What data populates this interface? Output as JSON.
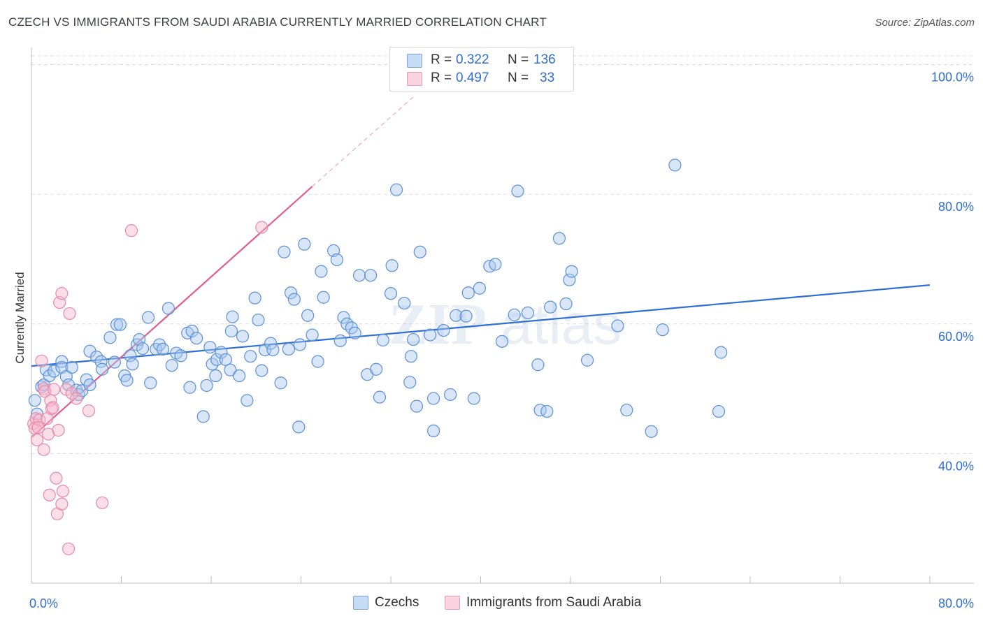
{
  "header": {
    "title": "CZECH VS IMMIGRANTS FROM SAUDI ARABIA CURRENTLY MARRIED CORRELATION CHART",
    "source": "Source: ZipAtlas.com"
  },
  "legend": {
    "rows": [
      {
        "r_label": "R =",
        "r_value": "0.322",
        "n_label": "N =",
        "n_value": "136",
        "color": "#a9c8f0"
      },
      {
        "r_label": "R =",
        "r_value": "0.497",
        "n_label": "N =",
        "n_value": "33",
        "color": "#f6b8cb"
      }
    ]
  },
  "bottom_legend": {
    "items": [
      {
        "label": "Czechs",
        "color": "#a9c8f0"
      },
      {
        "label": "Immigrants from Saudi Arabia",
        "color": "#f6b8cb"
      }
    ]
  },
  "chart_data": {
    "type": "scatter",
    "title": "CZECH VS IMMIGRANTS FROM SAUDI ARABIA CURRENTLY MARRIED CORRELATION CHART",
    "xlabel": "",
    "ylabel": "Currently Married",
    "xlim": [
      0,
      80
    ],
    "ylim": [
      20,
      102
    ],
    "x_tick_labels": [
      "0.0%",
      "80.0%"
    ],
    "y_ticks": [
      40,
      60,
      80,
      100
    ],
    "y_tick_labels": [
      "40.0%",
      "60.0%",
      "80.0%",
      "100.0%"
    ],
    "grid": true,
    "legend_position": "top-center",
    "watermark": "ZIPatlas",
    "series": [
      {
        "name": "Czechs",
        "color": "#a9c8f0",
        "stroke": "#5b8fd6",
        "trend": {
          "x": [
            0,
            80
          ],
          "y": [
            53.5,
            66.0
          ],
          "color": "#2e6fd3"
        },
        "points": [
          [
            0.3,
            48.2
          ],
          [
            0.5,
            46.1
          ],
          [
            0.9,
            50.3
          ],
          [
            1.1,
            50.6
          ],
          [
            1.3,
            52.9
          ],
          [
            1.6,
            52.0
          ],
          [
            2.0,
            52.7
          ],
          [
            2.7,
            54.2
          ],
          [
            2.7,
            53.3
          ],
          [
            3.1,
            51.9
          ],
          [
            3.3,
            50.6
          ],
          [
            3.6,
            53.3
          ],
          [
            4.0,
            49.8
          ],
          [
            4.2,
            49.1
          ],
          [
            4.5,
            49.7
          ],
          [
            4.9,
            51.4
          ],
          [
            5.2,
            50.6
          ],
          [
            5.2,
            55.8
          ],
          [
            5.8,
            54.9
          ],
          [
            6.2,
            54.2
          ],
          [
            6.3,
            53.0
          ],
          [
            7.0,
            57.9
          ],
          [
            7.4,
            54.1
          ],
          [
            7.6,
            59.9
          ],
          [
            7.9,
            59.9
          ],
          [
            8.3,
            52.0
          ],
          [
            8.5,
            51.3
          ],
          [
            8.8,
            55.1
          ],
          [
            9.0,
            53.8
          ],
          [
            9.4,
            56.8
          ],
          [
            9.6,
            57.6
          ],
          [
            9.9,
            56.2
          ],
          [
            10.4,
            61.0
          ],
          [
            10.6,
            50.9
          ],
          [
            11.1,
            56.1
          ],
          [
            11.4,
            56.8
          ],
          [
            11.7,
            56.1
          ],
          [
            12.2,
            62.4
          ],
          [
            12.5,
            53.6
          ],
          [
            12.9,
            55.5
          ],
          [
            13.3,
            55.1
          ],
          [
            13.9,
            58.6
          ],
          [
            14.1,
            50.2
          ],
          [
            14.3,
            58.9
          ],
          [
            14.7,
            57.8
          ],
          [
            15.3,
            45.7
          ],
          [
            15.6,
            50.5
          ],
          [
            15.9,
            56.4
          ],
          [
            16.1,
            53.8
          ],
          [
            16.4,
            52.0
          ],
          [
            16.5,
            54.5
          ],
          [
            16.9,
            55.6
          ],
          [
            17.3,
            54.5
          ],
          [
            17.7,
            52.9
          ],
          [
            17.8,
            58.9
          ],
          [
            17.9,
            61.1
          ],
          [
            18.5,
            52.0
          ],
          [
            18.8,
            58.1
          ],
          [
            19.2,
            48.2
          ],
          [
            19.5,
            55.0
          ],
          [
            19.9,
            64.0
          ],
          [
            20.2,
            60.6
          ],
          [
            20.5,
            52.8
          ],
          [
            20.8,
            56.0
          ],
          [
            21.3,
            57.0
          ],
          [
            21.5,
            56.0
          ],
          [
            22.2,
            50.9
          ],
          [
            22.5,
            71.1
          ],
          [
            22.9,
            56.1
          ],
          [
            23.1,
            64.8
          ],
          [
            23.4,
            63.8
          ],
          [
            23.9,
            56.8
          ],
          [
            23.8,
            44.1
          ],
          [
            24.3,
            72.3
          ],
          [
            24.6,
            61.3
          ],
          [
            25.0,
            58.3
          ],
          [
            25.5,
            54.2
          ],
          [
            25.8,
            68.1
          ],
          [
            26.0,
            64.1
          ],
          [
            26.9,
            71.3
          ],
          [
            27.2,
            69.9
          ],
          [
            27.5,
            57.4
          ],
          [
            27.8,
            61.0
          ],
          [
            28.1,
            60.0
          ],
          [
            28.5,
            59.4
          ],
          [
            28.8,
            58.6
          ],
          [
            29.2,
            67.5
          ],
          [
            29.9,
            52.2
          ],
          [
            30.2,
            67.5
          ],
          [
            30.7,
            53.0
          ],
          [
            31.0,
            48.7
          ],
          [
            31.3,
            57.5
          ],
          [
            32.0,
            64.7
          ],
          [
            32.1,
            69.0
          ],
          [
            32.5,
            80.7
          ],
          [
            33.2,
            63.2
          ],
          [
            33.7,
            51.0
          ],
          [
            33.8,
            55.0
          ],
          [
            34.0,
            57.6
          ],
          [
            34.3,
            47.3
          ],
          [
            34.6,
            71.1
          ],
          [
            35.5,
            58.3
          ],
          [
            35.8,
            43.5
          ],
          [
            35.8,
            48.5
          ],
          [
            36.7,
            59.0
          ],
          [
            37.3,
            49.1
          ],
          [
            37.8,
            61.3
          ],
          [
            38.7,
            61.2
          ],
          [
            38.9,
            64.8
          ],
          [
            39.4,
            48.5
          ],
          [
            39.9,
            65.5
          ],
          [
            40.8,
            68.9
          ],
          [
            41.3,
            69.2
          ],
          [
            41.9,
            57.3
          ],
          [
            43.0,
            61.4
          ],
          [
            43.3,
            80.5
          ],
          [
            44.2,
            61.7
          ],
          [
            45.1,
            53.7
          ],
          [
            45.3,
            46.7
          ],
          [
            45.9,
            46.5
          ],
          [
            46.2,
            62.6
          ],
          [
            47.0,
            73.2
          ],
          [
            47.6,
            63.1
          ],
          [
            47.9,
            66.8
          ],
          [
            48.1,
            68.1
          ],
          [
            49.5,
            54.4
          ],
          [
            52.2,
            59.7
          ],
          [
            53.0,
            46.7
          ],
          [
            55.2,
            43.4
          ],
          [
            56.2,
            59.1
          ],
          [
            57.3,
            84.5
          ],
          [
            61.2,
            46.5
          ],
          [
            61.4,
            55.6
          ]
        ]
      },
      {
        "name": "Immigrants from Saudi Arabia",
        "color": "#f6b8cb",
        "stroke": "#e889a8",
        "trend": {
          "x": [
            0,
            25
          ],
          "y": [
            42.5,
            81.2
          ],
          "dash_to": [
            34,
            95
          ],
          "color": "#e35d8c"
        },
        "points": [
          [
            0.2,
            44.6
          ],
          [
            0.3,
            43.9
          ],
          [
            0.4,
            45.4
          ],
          [
            0.5,
            42.1
          ],
          [
            0.7,
            45.2
          ],
          [
            0.9,
            54.3
          ],
          [
            1.1,
            50.0
          ],
          [
            1.1,
            40.6
          ],
          [
            1.2,
            49.6
          ],
          [
            1.4,
            45.4
          ],
          [
            1.5,
            43.0
          ],
          [
            1.6,
            33.6
          ],
          [
            1.7,
            48.2
          ],
          [
            1.8,
            46.9
          ],
          [
            1.9,
            47.1
          ],
          [
            2.0,
            49.9
          ],
          [
            2.2,
            36.2
          ],
          [
            2.3,
            30.7
          ],
          [
            2.4,
            43.6
          ],
          [
            2.5,
            63.3
          ],
          [
            2.7,
            64.7
          ],
          [
            2.7,
            32.2
          ],
          [
            2.8,
            34.2
          ],
          [
            3.1,
            49.9
          ],
          [
            3.3,
            25.3
          ],
          [
            3.4,
            61.6
          ],
          [
            3.6,
            49.3
          ],
          [
            4.0,
            48.5
          ],
          [
            5.1,
            46.6
          ],
          [
            6.3,
            32.4
          ],
          [
            8.9,
            74.4
          ],
          [
            20.5,
            74.9
          ],
          [
            0.6,
            44.0
          ]
        ]
      }
    ]
  }
}
